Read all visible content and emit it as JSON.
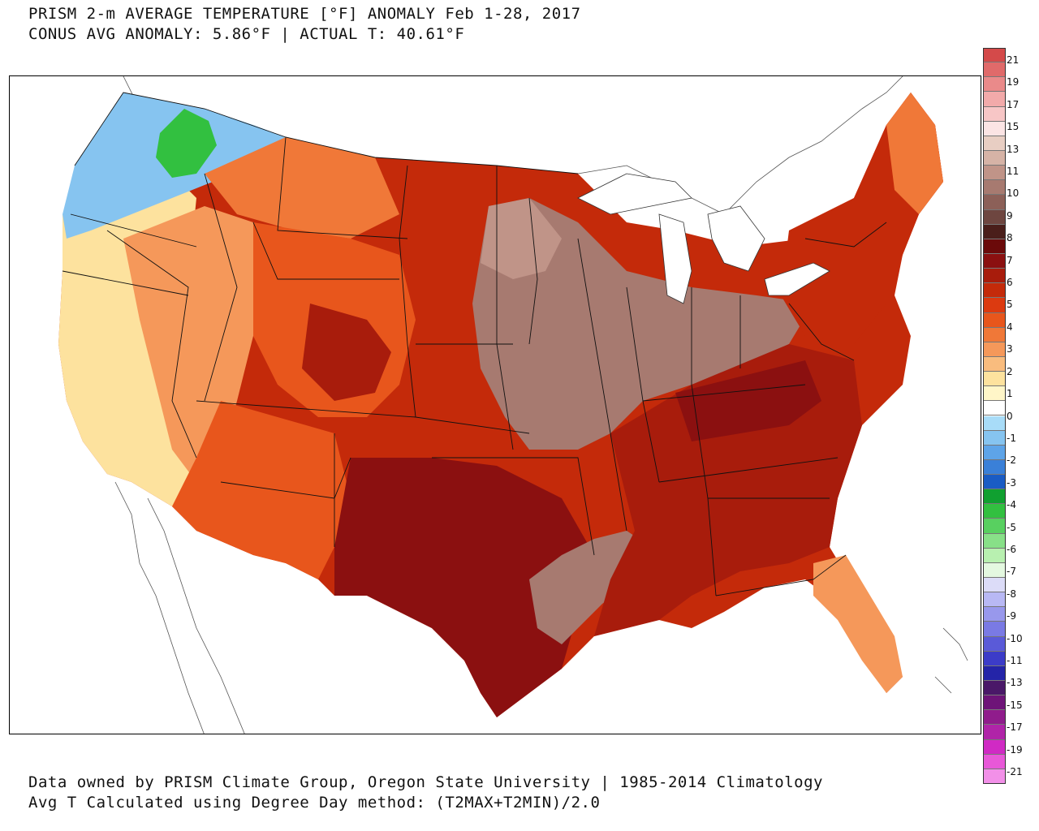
{
  "title": {
    "line1": "PRISM 2-m AVERAGE TEMPERATURE [°F] ANOMALY Feb 1-28, 2017",
    "line2": "CONUS AVG ANOMALY: 5.86°F | ACTUAL T: 40.61°F"
  },
  "footer": {
    "line1": "Data owned by PRISM Climate Group, Oregon State University | 1985-2014 Climatology",
    "line2": "Avg T Calculated using Degree Day method: (T2MAX+T2MIN)/2.0"
  },
  "colorbar": {
    "colors": [
      "#d44a4a",
      "#e06a6a",
      "#ea8a8a",
      "#f2aaaa",
      "#f7c6c6",
      "#fbe4e4",
      "#e8cec3",
      "#d6b3a6",
      "#c09488",
      "#a77a70",
      "#8c6058",
      "#6e4640",
      "#4a1e1a",
      "#6b0a0a",
      "#8b1010",
      "#a81c0c",
      "#c42a0a",
      "#dc3a10",
      "#e8561c",
      "#f07838",
      "#f5985a",
      "#f9bc7e",
      "#fde29e",
      "#fff6c8",
      "#ffffff",
      "#a8dcf8",
      "#86c4f0",
      "#5ea4e8",
      "#3a80d8",
      "#1a5cc4",
      "#10a030",
      "#32c040",
      "#58d060",
      "#88e088",
      "#b8f0b0",
      "#e4f8e0",
      "#dcdcf8",
      "#b8b8f4",
      "#9898ec",
      "#7a7ae4",
      "#5a5ad8",
      "#3c3cc8",
      "#2424a8",
      "#4a1868",
      "#6e1478",
      "#901c8c",
      "#b024a8",
      "#d02ac4",
      "#e858d8",
      "#f290e8"
    ],
    "labels": [
      "21",
      "19",
      "17",
      "15",
      "13",
      "11",
      "10",
      "9",
      "8",
      "7",
      "6",
      "5",
      "4",
      "3",
      "2",
      "1",
      "0",
      "-1",
      "-2",
      "-3",
      "-4",
      "-5",
      "-6",
      "-7",
      "-8",
      "-9",
      "-10",
      "-11",
      "-13",
      "-15",
      "-17",
      "-19",
      "-21"
    ]
  },
  "regions": {
    "northwest_cool": "#86c4f0",
    "cascade_green": "#32c040",
    "west_coast": "#fde29e",
    "great_basin": "#f5985a",
    "rockies": "#e8561c",
    "plains": "#c42a0a",
    "texas": "#8b1010",
    "midwest_brown": "#a77a70",
    "southeast": "#a81c0c",
    "florida": "#f5985a",
    "northeast": "#c42a0a",
    "maine": "#f07838"
  }
}
